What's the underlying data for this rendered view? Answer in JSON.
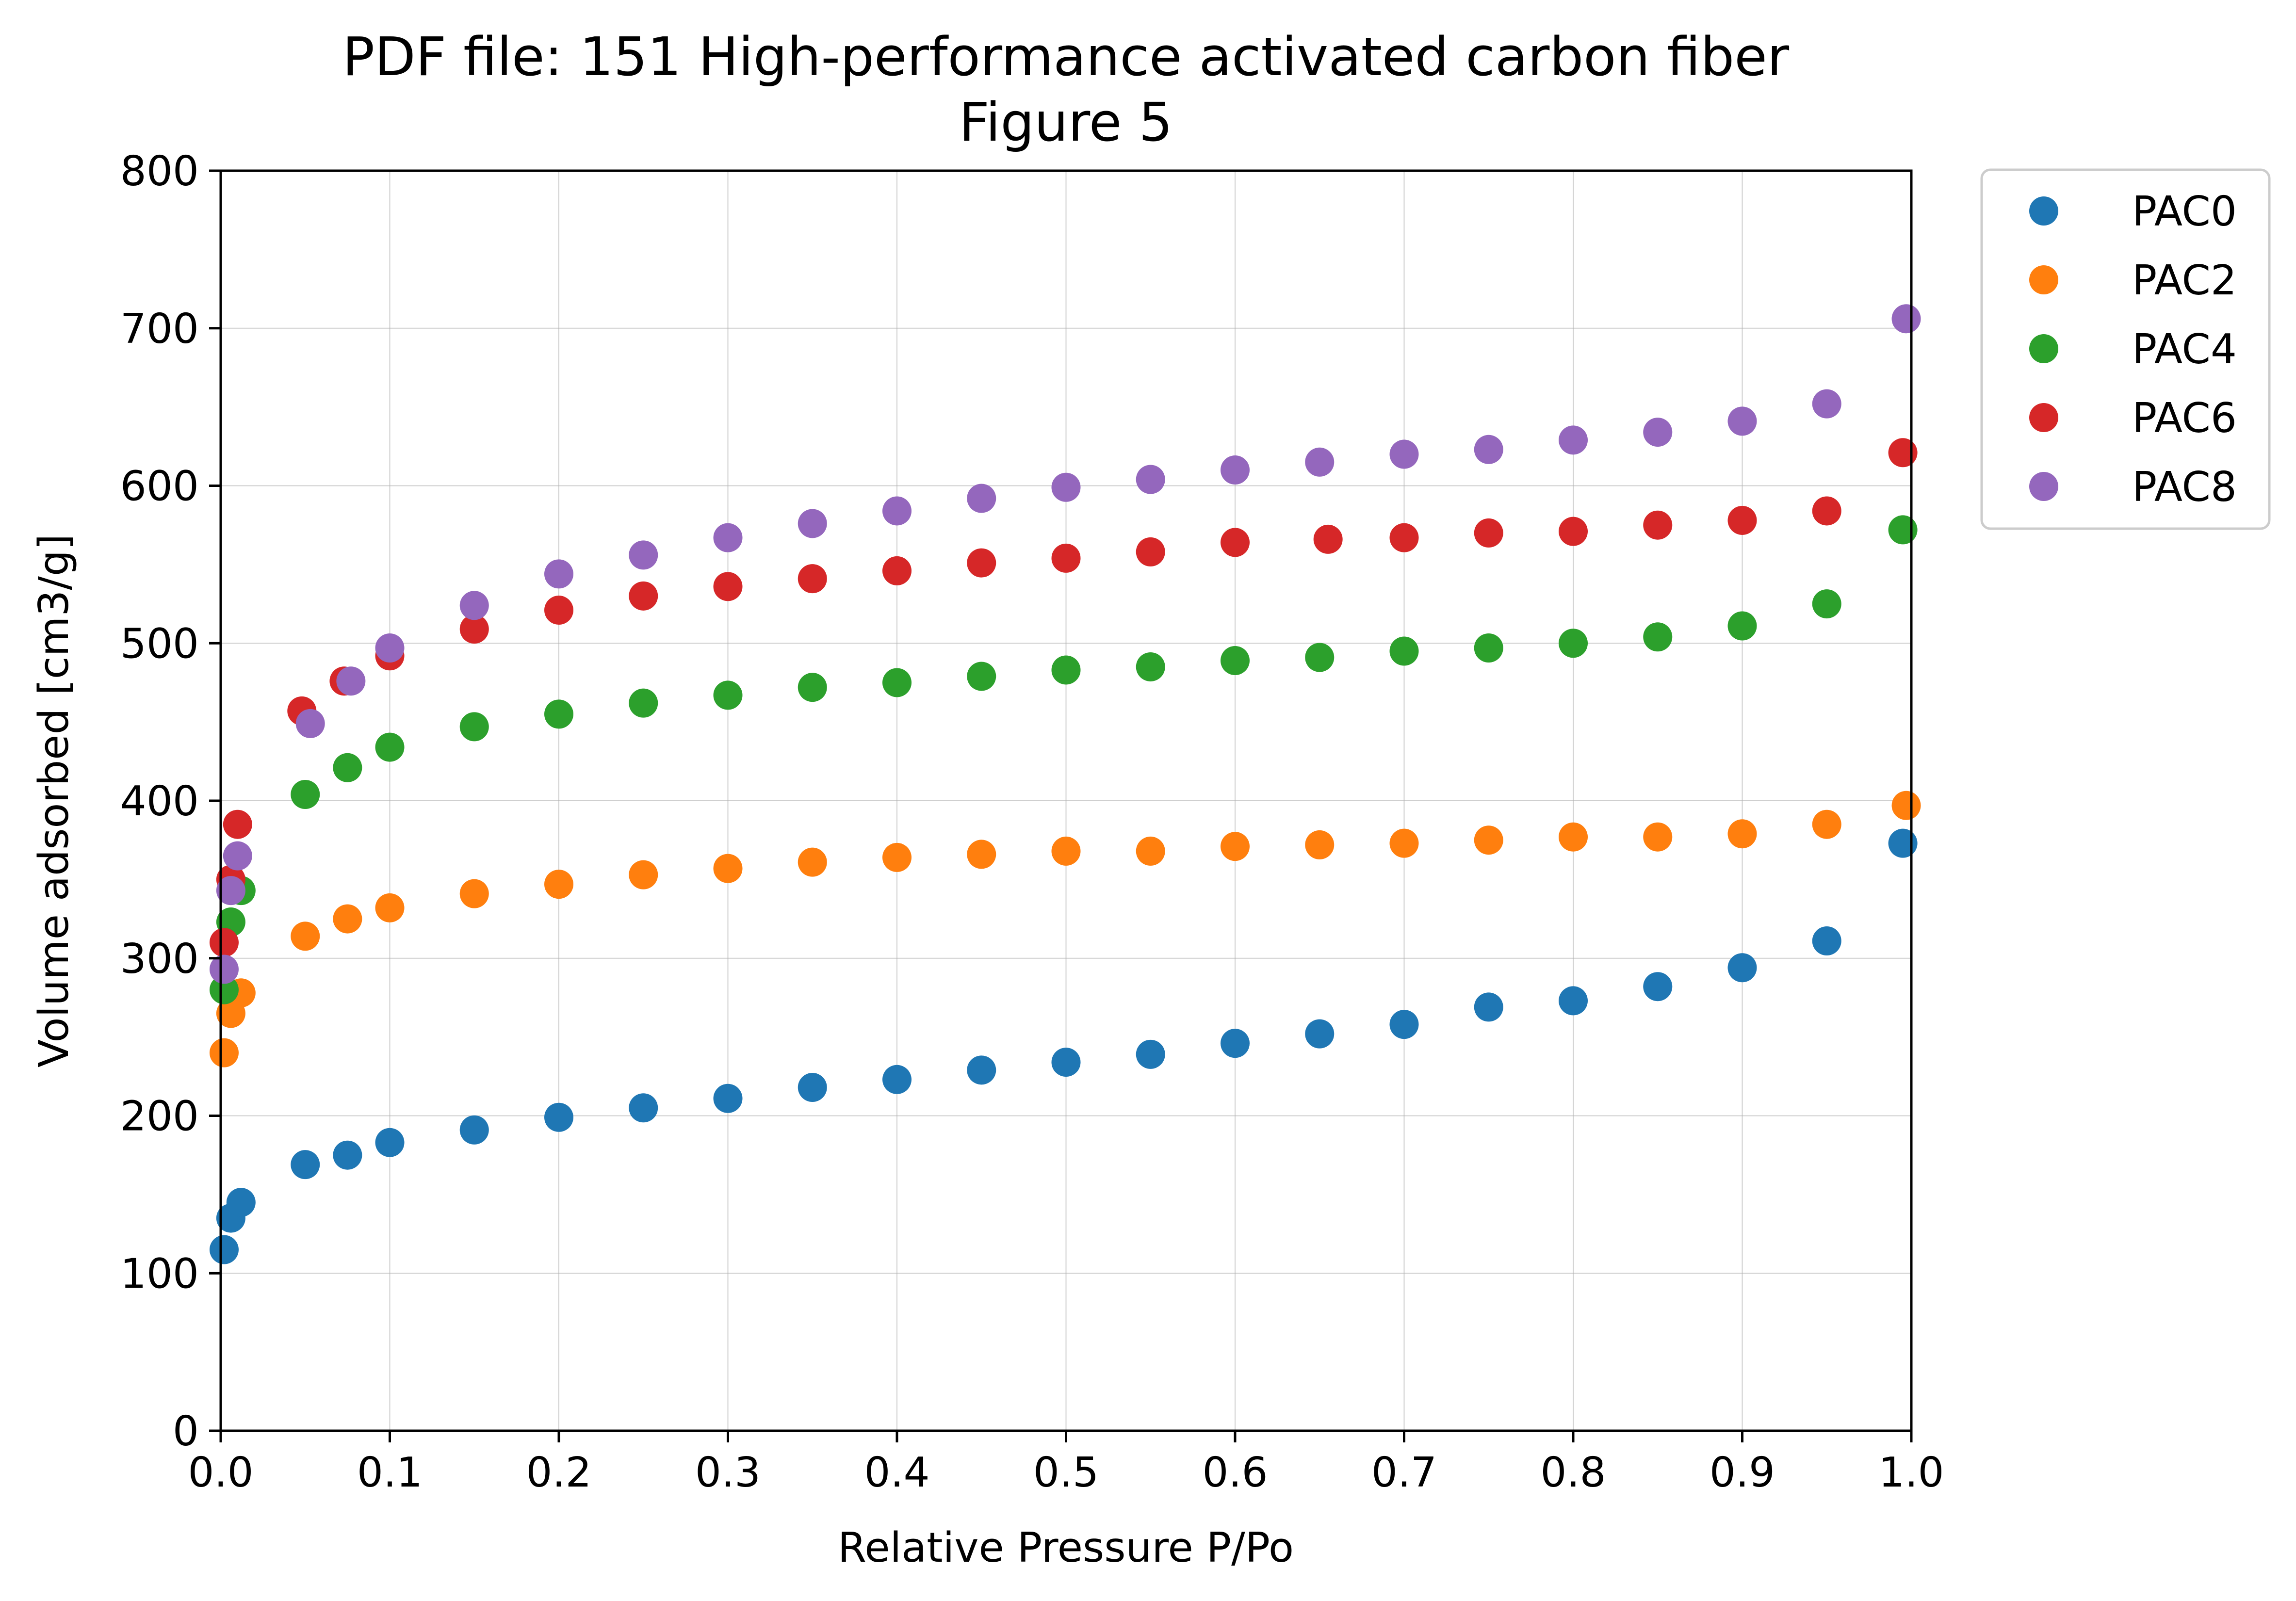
{
  "chart_data": {
    "type": "scatter",
    "title": "PDF file: 151 High-performance activated carbon fiber",
    "subtitle": "Figure 5",
    "xlabel": "Relative Pressure P/Po",
    "ylabel": "Volume adsorbed [cm3/g]",
    "xlim": [
      0.0,
      1.0
    ],
    "ylim": [
      0,
      800
    ],
    "xticks": [
      0.0,
      0.1,
      0.2,
      0.3,
      0.4,
      0.5,
      0.6,
      0.7,
      0.8,
      0.9,
      1.0
    ],
    "xtick_labels": [
      "0.0",
      "0.1",
      "0.2",
      "0.3",
      "0.4",
      "0.5",
      "0.6",
      "0.7",
      "0.8",
      "0.9",
      "1.0"
    ],
    "yticks": [
      0,
      100,
      200,
      300,
      400,
      500,
      600,
      700,
      800
    ],
    "ytick_labels": [
      "0",
      "100",
      "200",
      "300",
      "400",
      "500",
      "600",
      "700",
      "800"
    ],
    "grid": true,
    "legend_position": "outside-upper-right",
    "series": [
      {
        "name": "PAC0",
        "color": "#1f77b4",
        "x": [
          0.002,
          0.006,
          0.012,
          0.05,
          0.075,
          0.1,
          0.15,
          0.2,
          0.25,
          0.3,
          0.35,
          0.4,
          0.45,
          0.5,
          0.55,
          0.6,
          0.65,
          0.7,
          0.75,
          0.8,
          0.85,
          0.9,
          0.95,
          0.995
        ],
        "y": [
          115,
          135,
          145,
          169,
          175,
          183,
          191,
          199,
          205,
          211,
          218,
          223,
          229,
          234,
          239,
          246,
          252,
          258,
          269,
          273,
          282,
          294,
          311,
          373
        ]
      },
      {
        "name": "PAC2",
        "color": "#ff7f0e",
        "x": [
          0.002,
          0.006,
          0.012,
          0.05,
          0.075,
          0.1,
          0.15,
          0.2,
          0.25,
          0.3,
          0.35,
          0.4,
          0.45,
          0.5,
          0.55,
          0.6,
          0.65,
          0.7,
          0.75,
          0.8,
          0.85,
          0.9,
          0.95,
          0.997
        ],
        "y": [
          240,
          265,
          278,
          314,
          325,
          332,
          341,
          347,
          353,
          357,
          361,
          364,
          366,
          368,
          368,
          371,
          372,
          373,
          375,
          377,
          377,
          379,
          385,
          397
        ]
      },
      {
        "name": "PAC4",
        "color": "#2ca02c",
        "x": [
          0.002,
          0.006,
          0.012,
          0.05,
          0.075,
          0.1,
          0.15,
          0.2,
          0.25,
          0.3,
          0.35,
          0.4,
          0.45,
          0.5,
          0.55,
          0.6,
          0.65,
          0.7,
          0.75,
          0.8,
          0.85,
          0.9,
          0.95,
          0.995
        ],
        "y": [
          280,
          323,
          343,
          404,
          421,
          434,
          447,
          455,
          462,
          467,
          472,
          475,
          479,
          483,
          485,
          489,
          491,
          495,
          497,
          500,
          504,
          511,
          525,
          572
        ]
      },
      {
        "name": "PAC6",
        "color": "#d62728",
        "x": [
          0.002,
          0.006,
          0.01,
          0.048,
          0.073,
          0.1,
          0.15,
          0.2,
          0.25,
          0.3,
          0.35,
          0.4,
          0.45,
          0.5,
          0.55,
          0.6,
          0.655,
          0.7,
          0.75,
          0.8,
          0.85,
          0.9,
          0.95,
          0.995
        ],
        "y": [
          310,
          350,
          385,
          457,
          476,
          492,
          509,
          521,
          530,
          536,
          541,
          546,
          551,
          554,
          558,
          564,
          566,
          567,
          570,
          571,
          575,
          578,
          584,
          621
        ]
      },
      {
        "name": "PAC8",
        "color": "#9467bd",
        "x": [
          0.002,
          0.006,
          0.01,
          0.053,
          0.077,
          0.1,
          0.15,
          0.2,
          0.25,
          0.3,
          0.35,
          0.4,
          0.45,
          0.5,
          0.55,
          0.6,
          0.65,
          0.7,
          0.75,
          0.8,
          0.85,
          0.9,
          0.95,
          0.997
        ],
        "y": [
          293,
          343,
          365,
          449,
          476,
          497,
          524,
          544,
          556,
          567,
          576,
          584,
          592,
          599,
          604,
          610,
          615,
          620,
          623,
          629,
          634,
          641,
          652,
          706
        ]
      }
    ]
  }
}
